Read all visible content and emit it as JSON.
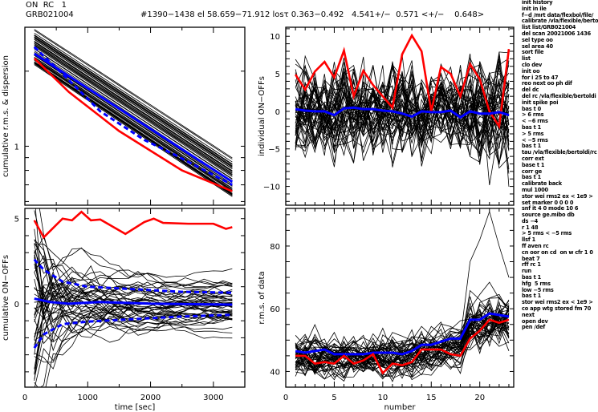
{
  "header": {
    "line1": "ON  RC   1",
    "line2": "GRB021004",
    "line3": "#1390−1438 el 58.659−71.912 losτ 0.363−0.492   4.541+/−  0.571 <+/−    0.648>"
  },
  "command_log": [
    "init history",
    "init in ile",
    "f−d /mrt data/flexbol/file/",
    "calibrate /vla/flexible/berto",
    "list list/GRB021004",
    "del scan 20021006 1436",
    "sel type oo",
    "sel area 40",
    "sort file",
    "list",
    "clo dev",
    "init oo",
    "for i 25 to 47",
    "reo next oo ph dif",
    "del dc",
    "del rc /vla/flexible/bertoldi",
    "init spike poi",
    "bas t 0",
    "> 6 rms",
    "< −6 rms",
    "bas t 1",
    "> 5 rms",
    "< −5 rms",
    "bas t 1",
    "tau /vla/flexible/bertoldi/rc",
    "corr ext",
    "base t 1",
    "corr ge",
    "bas t 1",
    "calibrate back",
    "mul 1000",
    "stor wei rms2 ex < 1e9 >",
    "set marker 0 0 0 0",
    "snf it 4 0 mode 10 6",
    "source ge.mibo db",
    "ds −4",
    "r 1 48",
    "> 5 rms < −5 rms",
    "llsf 1",
    "ff aven rc",
    "cn oor on cd  on w cfr 1 0",
    "beat 7",
    "rff rc 1",
    "run",
    "bas t 1",
    "hfg  5 rms",
    "low −5 rms",
    "bas t 1",
    "stor wei rms2 ex < 1e9 >",
    "co app wtg stored fm 70",
    "next",
    "open dev",
    "pen /def"
  ],
  "colors": {
    "scan_lines": "#000000",
    "mean": "#0000ff",
    "dispersion": "#0000ff",
    "source": "#ff0000"
  },
  "chart_data": [
    {
      "id": "top-left",
      "type": "line",
      "title": "",
      "xlabel": "",
      "ylabel": "cumulative r.m.s. & dispersion",
      "yscale": "log",
      "xlim": [
        0,
        3500
      ],
      "ylim": [
        0.58,
        3.0
      ],
      "yticks": [
        {
          "v": 1,
          "label": "1"
        }
      ],
      "series": [
        {
          "name": "mean",
          "color": "#0000ff",
          "style": "solid",
          "x": [
            150,
            3300
          ],
          "y": [
            2.35,
            0.72
          ]
        },
        {
          "name": "dispersion",
          "color": "#0000ff",
          "style": "dashed",
          "x": [
            150,
            600,
            1200,
            1900,
            2400,
            3300
          ],
          "y": [
            2.5,
            1.95,
            1.38,
            1.06,
            0.92,
            0.7
          ]
        },
        {
          "name": "source",
          "color": "#ff0000",
          "style": "solid",
          "x": [
            150,
            700,
            1500,
            2500,
            3300
          ],
          "y": [
            2.25,
            1.65,
            1.15,
            0.8,
            0.66
          ]
        }
      ],
      "scan_bundle": {
        "count": 49,
        "x": [
          150,
          3300
        ],
        "y_start_range": [
          2.1,
          2.95
        ],
        "y_end_range": [
          0.62,
          0.9
        ]
      }
    },
    {
      "id": "top-right",
      "type": "line",
      "title": "",
      "xlabel": "",
      "ylabel": "individual ON−OFFs",
      "xlim": [
        0,
        23.5
      ],
      "ylim": [
        -12.5,
        11.2
      ],
      "yticks": [
        {
          "v": 10,
          "label": "10"
        },
        {
          "v": 5,
          "label": "5"
        },
        {
          "v": 0,
          "label": "0"
        },
        {
          "v": -5,
          "label": "−5"
        },
        {
          "v": -10,
          "label": "−10"
        }
      ],
      "series": [
        {
          "name": "source",
          "color": "#ff0000",
          "style": "solid",
          "x": [
            1,
            2,
            3,
            4,
            5,
            6,
            7,
            8,
            9,
            10,
            11,
            12,
            13,
            14,
            15,
            16,
            17,
            18,
            19,
            20,
            21,
            22,
            23
          ],
          "y": [
            4.9,
            2.9,
            5.3,
            6.6,
            4.5,
            8.1,
            2.0,
            5.4,
            3.5,
            2.0,
            0.5,
            7.6,
            10.1,
            8.0,
            0.0,
            5.9,
            5.0,
            2.0,
            6.3,
            4.3,
            0.0,
            -2.0,
            8.3
          ]
        },
        {
          "name": "mean",
          "color": "#0000ff",
          "style": "solid",
          "x": [
            1,
            2,
            3,
            4,
            5,
            6,
            7,
            8,
            9,
            10,
            11,
            12,
            13,
            14,
            15,
            16,
            17,
            18,
            19,
            20,
            21,
            22,
            23
          ],
          "y": [
            0.3,
            0.1,
            0.0,
            0.0,
            -0.5,
            0.4,
            0.5,
            0.3,
            0.3,
            0.1,
            0.0,
            -0.3,
            -0.7,
            0.0,
            -0.1,
            -0.1,
            0.1,
            -0.8,
            0.0,
            -0.3,
            -0.3,
            -0.1,
            -0.5
          ]
        }
      ],
      "scan_bundle": {
        "count": 49,
        "spread": 3.0
      }
    },
    {
      "id": "bottom-left",
      "type": "line",
      "title": "",
      "xlabel": "time [sec]",
      "ylabel": "cumulative ON−OFFs",
      "xlim": [
        0,
        3500
      ],
      "ylim": [
        -4.9,
        5.6
      ],
      "xticks": [
        {
          "v": 0,
          "label": "0"
        },
        {
          "v": 1000,
          "label": "1000"
        },
        {
          "v": 2000,
          "label": "2000"
        },
        {
          "v": 3000,
          "label": "3000"
        }
      ],
      "yticks": [
        {
          "v": 5,
          "label": "5"
        },
        {
          "v": 0,
          "label": "0"
        }
      ],
      "series": [
        {
          "name": "source",
          "color": "#ff0000",
          "style": "solid",
          "x": [
            150,
            300,
            600,
            750,
            900,
            1050,
            1200,
            1600,
            1900,
            2050,
            2200,
            2600,
            3000,
            3200,
            3300
          ],
          "y": [
            4.9,
            3.9,
            5.0,
            4.9,
            5.4,
            4.9,
            4.95,
            4.1,
            4.8,
            5.0,
            4.75,
            4.7,
            4.7,
            4.4,
            4.5
          ]
        },
        {
          "name": "mean",
          "color": "#0000ff",
          "style": "solid",
          "x": [
            150,
            400,
            700,
            1200,
            2000,
            3300
          ],
          "y": [
            0.3,
            0.1,
            0.0,
            0.1,
            0.0,
            -0.05
          ]
        },
        {
          "name": "dispersion-upper",
          "color": "#0000ff",
          "style": "dashed",
          "x": [
            150,
            300,
            600,
            1000,
            1500,
            2000,
            2500,
            3300
          ],
          "y": [
            2.6,
            2.0,
            1.3,
            1.0,
            0.9,
            0.8,
            0.7,
            0.65
          ]
        },
        {
          "name": "dispersion-lower",
          "color": "#0000ff",
          "style": "dashed",
          "x": [
            150,
            300,
            600,
            1000,
            1500,
            2000,
            2500,
            3300
          ],
          "y": [
            -2.6,
            -1.8,
            -1.2,
            -1.05,
            -0.95,
            -0.85,
            -0.75,
            -0.65
          ]
        }
      ],
      "scan_bundle": {
        "count": 49
      }
    },
    {
      "id": "bottom-right",
      "type": "line",
      "title": "",
      "xlabel": "number",
      "ylabel": "r.m.s. of data",
      "xlim": [
        0,
        23.5
      ],
      "ylim": [
        35,
        92
      ],
      "xticks": [
        {
          "v": 0,
          "label": "0"
        },
        {
          "v": 5,
          "label": "5"
        },
        {
          "v": 10,
          "label": "10"
        },
        {
          "v": 15,
          "label": "15"
        },
        {
          "v": 20,
          "label": "20"
        }
      ],
      "yticks": [
        {
          "v": 80,
          "label": "80"
        },
        {
          "v": 60,
          "label": "60"
        },
        {
          "v": 40,
          "label": "40"
        }
      ],
      "series": [
        {
          "name": "mean",
          "color": "#0000ff",
          "style": "solid",
          "x": [
            1,
            2,
            3,
            4,
            5,
            6,
            7,
            8,
            9,
            10,
            11,
            12,
            13,
            14,
            15,
            16,
            17,
            18,
            19,
            20,
            21,
            22,
            23
          ],
          "y": [
            46.5,
            46,
            46.5,
            47,
            45.5,
            45.5,
            45.5,
            45.5,
            46,
            46,
            46,
            45.5,
            46.5,
            48.5,
            48.5,
            49.5,
            50.5,
            50.5,
            56.5,
            56.5,
            58.5,
            58,
            57.5
          ]
        },
        {
          "name": "source",
          "color": "#ff0000",
          "style": "solid",
          "x": [
            1,
            2,
            3,
            4,
            5,
            6,
            7,
            8,
            9,
            10,
            11,
            12,
            13,
            14,
            15,
            16,
            17,
            18,
            19,
            20,
            21,
            22,
            23
          ],
          "y": [
            45,
            45,
            42.5,
            43,
            42.5,
            45,
            42.5,
            43.5,
            45.5,
            39.5,
            42.5,
            42,
            43,
            47,
            47,
            47,
            45.5,
            45,
            50.5,
            53,
            56.5,
            55.5,
            56.5
          ]
        }
      ],
      "scan_bundle": {
        "count": 49,
        "peak_x": 21,
        "peak_y": 91
      }
    }
  ]
}
